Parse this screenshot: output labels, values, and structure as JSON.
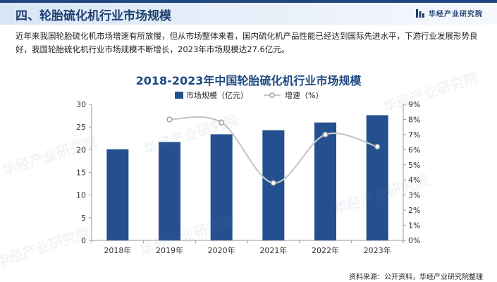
{
  "header": {
    "title": "四、轮胎硫化机行业市场规模",
    "brand": "华经产业研究院"
  },
  "intro": "近年来我国轮胎硫化机市场增速有所放慢，但从市场整体来看，国内硫化机产品性能已经达到国际先进水平，下游行业发展形势良好，我国轮胎硫化机行业市场规模不断增长，2023年市场规模达27.6亿元。",
  "watermark": "华经产业研究院",
  "source": "资料来源：公开资料，华经产业研究院整理",
  "colors": {
    "bar": "#24508f",
    "line": "#c7c7c7",
    "marker_fill": "#ffffff",
    "title": "#1e4a82"
  },
  "chart_data": {
    "type": "bar+line",
    "title": "2018-2023年中国轮胎硫化机行业市场规模",
    "categories": [
      "2018年",
      "2019年",
      "2020年",
      "2021年",
      "2022年",
      "2023年"
    ],
    "series": [
      {
        "name": "市场规模（亿元）",
        "type": "bar",
        "axis": "left",
        "values": [
          20.1,
          21.7,
          23.4,
          24.3,
          26.0,
          27.6
        ]
      },
      {
        "name": "增速（%）",
        "type": "line",
        "axis": "right",
        "smooth": true,
        "values": [
          null,
          8.0,
          7.8,
          3.8,
          7.0,
          6.2
        ]
      }
    ],
    "y_left": {
      "min": 0,
      "max": 30,
      "ticks": [
        "0",
        "5",
        "10",
        "15",
        "20",
        "25",
        "30"
      ]
    },
    "y_right": {
      "min": 0,
      "max": 9,
      "ticks": [
        "0%",
        "1%",
        "2%",
        "3%",
        "4%",
        "5%",
        "6%",
        "7%",
        "8%",
        "9%"
      ]
    },
    "legend_position": "top",
    "grid": false
  }
}
